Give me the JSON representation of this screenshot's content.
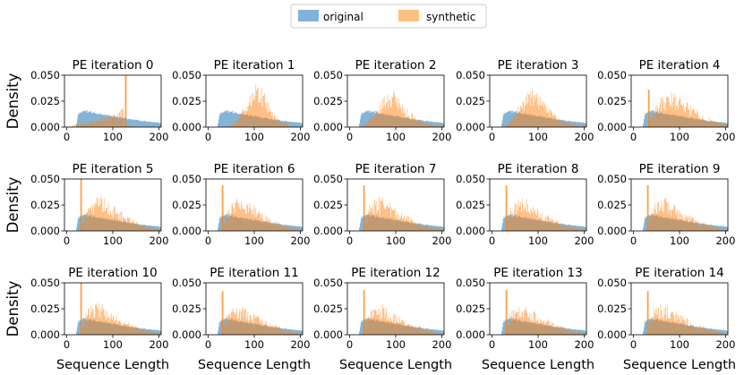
{
  "chart_data": {
    "type": "histogram-grid",
    "legend": {
      "placement": "top-center",
      "entries": [
        {
          "name": "original",
          "color": "#7fb3d8"
        },
        {
          "name": "synthetic",
          "color": "#ffbf80"
        }
      ]
    },
    "shared_axes": {
      "xlabel": "Sequence Length",
      "ylabel": "Density",
      "xlim": [
        -5,
        205
      ],
      "ylim": [
        0,
        0.05
      ],
      "xticks": [
        0,
        100,
        200
      ],
      "yticks": [
        0.0,
        0.025,
        0.05
      ],
      "ytick_labels": [
        "0.000",
        "0.025",
        "0.050"
      ]
    },
    "original_series": {
      "name": "original",
      "x": [
        0,
        20,
        25,
        35,
        50,
        70,
        100,
        130,
        170,
        205
      ],
      "density": [
        0,
        0,
        0.013,
        0.0155,
        0.0148,
        0.013,
        0.0105,
        0.0082,
        0.0055,
        0.0038
      ]
    },
    "panels": [
      {
        "title": "PE iteration 0",
        "synthetic": {
          "x": [
            0,
            10,
            50,
            90,
            110,
            122,
            125,
            132,
            140,
            160
          ],
          "density": [
            0,
            0.001,
            0.0045,
            0.0085,
            0.0102,
            0.015,
            0.0015,
            0.001,
            0.0006,
            0
          ]
        },
        "spike": {
          "x": 128,
          "density": 0.05
        }
      },
      {
        "title": "PE iteration 1",
        "synthetic": {
          "x": [
            40,
            60,
            80,
            100,
            110,
            120,
            140,
            160,
            185
          ],
          "density": [
            0,
            0.004,
            0.017,
            0.031,
            0.035,
            0.028,
            0.011,
            0.004,
            0
          ]
        }
      },
      {
        "title": "PE iteration 2",
        "synthetic": {
          "x": [
            25,
            40,
            60,
            80,
            90,
            100,
            120,
            150,
            190
          ],
          "density": [
            0,
            0.004,
            0.017,
            0.025,
            0.028,
            0.026,
            0.015,
            0.005,
            0.001
          ]
        }
      },
      {
        "title": "PE iteration 3",
        "synthetic": {
          "x": [
            25,
            40,
            60,
            80,
            90,
            100,
            120,
            150,
            190
          ],
          "density": [
            0,
            0.005,
            0.019,
            0.027,
            0.029,
            0.026,
            0.015,
            0.005,
            0.001
          ]
        }
      },
      {
        "title": "PE iteration 4",
        "synthetic": {
          "x": [
            30,
            40,
            60,
            80,
            100,
            120,
            150,
            200
          ],
          "density": [
            0,
            0.01,
            0.022,
            0.026,
            0.023,
            0.017,
            0.009,
            0.002
          ]
        },
        "spike": {
          "x": 33,
          "density": 0.036
        }
      },
      {
        "title": "PE iteration 5",
        "synthetic": {
          "x": [
            30,
            40,
            60,
            75,
            90,
            110,
            140,
            170,
            200
          ],
          "density": [
            0,
            0.016,
            0.024,
            0.026,
            0.023,
            0.016,
            0.009,
            0.004,
            0.001
          ]
        },
        "spike": {
          "x": 31,
          "density": 0.05
        }
      },
      {
        "title": "PE iteration 6",
        "synthetic": {
          "x": [
            30,
            40,
            60,
            75,
            90,
            110,
            140,
            170,
            200
          ],
          "density": [
            0,
            0.015,
            0.023,
            0.025,
            0.022,
            0.015,
            0.008,
            0.004,
            0.001
          ]
        },
        "spike": {
          "x": 31,
          "density": 0.044
        }
      },
      {
        "title": "PE iteration 7",
        "synthetic": {
          "x": [
            30,
            40,
            55,
            70,
            85,
            110,
            140,
            170,
            200
          ],
          "density": [
            0,
            0.017,
            0.024,
            0.025,
            0.021,
            0.014,
            0.008,
            0.004,
            0.001
          ]
        },
        "spike": {
          "x": 31,
          "density": 0.044
        }
      },
      {
        "title": "PE iteration 8",
        "synthetic": {
          "x": [
            30,
            40,
            55,
            70,
            85,
            110,
            140,
            170,
            200
          ],
          "density": [
            0,
            0.017,
            0.023,
            0.024,
            0.021,
            0.014,
            0.008,
            0.004,
            0.001
          ]
        },
        "spike": {
          "x": 31,
          "density": 0.044
        }
      },
      {
        "title": "PE iteration 9",
        "synthetic": {
          "x": [
            30,
            40,
            55,
            70,
            85,
            110,
            140,
            170,
            200
          ],
          "density": [
            0,
            0.017,
            0.023,
            0.024,
            0.021,
            0.014,
            0.008,
            0.004,
            0.001
          ]
        },
        "spike": {
          "x": 31,
          "density": 0.044
        }
      },
      {
        "title": "PE iteration 10",
        "synthetic": {
          "x": [
            30,
            40,
            55,
            70,
            85,
            110,
            140,
            170,
            200
          ],
          "density": [
            0,
            0.018,
            0.024,
            0.024,
            0.02,
            0.014,
            0.008,
            0.004,
            0.001
          ]
        },
        "spike": {
          "x": 31,
          "density": 0.05
        }
      },
      {
        "title": "PE iteration 11",
        "synthetic": {
          "x": [
            30,
            40,
            55,
            70,
            85,
            110,
            140,
            170,
            200
          ],
          "density": [
            0,
            0.017,
            0.021,
            0.021,
            0.018,
            0.013,
            0.008,
            0.004,
            0.001
          ]
        },
        "spike": {
          "x": 31,
          "density": 0.042
        }
      },
      {
        "title": "PE iteration 12",
        "synthetic": {
          "x": [
            30,
            40,
            55,
            70,
            85,
            110,
            140,
            170,
            200
          ],
          "density": [
            0,
            0.017,
            0.022,
            0.022,
            0.019,
            0.013,
            0.008,
            0.004,
            0.001
          ]
        },
        "spike": {
          "x": 31,
          "density": 0.043
        }
      },
      {
        "title": "PE iteration 13",
        "synthetic": {
          "x": [
            30,
            40,
            55,
            70,
            85,
            110,
            140,
            170,
            200
          ],
          "density": [
            0,
            0.018,
            0.023,
            0.022,
            0.019,
            0.013,
            0.008,
            0.004,
            0.001
          ]
        },
        "spike": {
          "x": 31,
          "density": 0.043
        }
      },
      {
        "title": "PE iteration 14",
        "synthetic": {
          "x": [
            30,
            40,
            55,
            70,
            85,
            110,
            140,
            170,
            200
          ],
          "density": [
            0,
            0.017,
            0.022,
            0.022,
            0.019,
            0.013,
            0.008,
            0.004,
            0.001
          ]
        },
        "spike": {
          "x": 31,
          "density": 0.042
        }
      }
    ]
  }
}
